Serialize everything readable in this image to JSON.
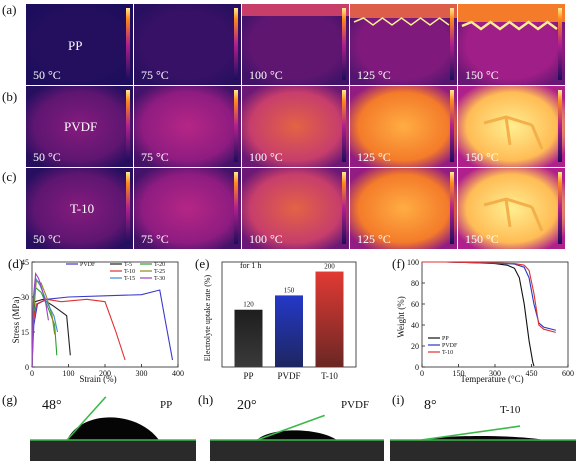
{
  "panels": {
    "a": "(a)",
    "b": "(b)",
    "c": "(c)",
    "d": "(d)",
    "e": "(e)",
    "f": "(f)",
    "g": "(g)",
    "h": "(h)",
    "i": "(i)"
  },
  "thermal": {
    "rows": [
      {
        "label": "PP",
        "id": "pp",
        "intensity": [
          0.02,
          0.08,
          0.2,
          0.3,
          0.4
        ]
      },
      {
        "label": "PVDF",
        "id": "pvdf",
        "intensity": [
          0.2,
          0.35,
          0.55,
          0.75,
          0.9
        ]
      },
      {
        "label": "T-10",
        "id": "t10",
        "intensity": [
          0.2,
          0.35,
          0.55,
          0.75,
          0.9
        ]
      }
    ],
    "temps": [
      "50 °C",
      "75 °C",
      "100 °C",
      "125 °C",
      "150 °C"
    ]
  },
  "colors": {
    "thermal_low": "#1c0e5c",
    "thermal_mid": "#b0208c",
    "thermal_high": "#ff8a1a",
    "thermal_top": "#ffee90",
    "pp_bar": "#1e1e1e",
    "pvdf_bar": "#2438c8",
    "t10_bar": "#e23a34",
    "contact_line": "#3cb84a",
    "drop": "#050505"
  },
  "chart_data": [
    {
      "type": "line",
      "panel": "d",
      "xlabel": "Strain (%)",
      "ylabel": "Stress (MPa)",
      "xlim": [
        0,
        400
      ],
      "ylim": [
        0,
        45
      ],
      "xticks": [
        0,
        100,
        200,
        300,
        400
      ],
      "yticks": [
        0,
        15,
        30,
        45
      ],
      "legend": [
        {
          "name": "PVDF",
          "color": "#3a3acc"
        },
        {
          "name": "T-5",
          "color": "#222222"
        },
        {
          "name": "T-20",
          "color": "#2ca02c"
        },
        {
          "name": "T-10",
          "color": "#e03030"
        },
        {
          "name": "T-25",
          "color": "#8c8c1c"
        },
        {
          "name": "T-15",
          "color": "#3a8ad8"
        },
        {
          "name": "T-30",
          "color": "#a040c0"
        }
      ],
      "series": [
        {
          "name": "PVDF",
          "color": "#3a3acc",
          "x": [
            0,
            5,
            15,
            40,
            100,
            200,
            300,
            350,
            365,
            385
          ],
          "y": [
            0,
            18,
            27,
            29,
            30,
            30.5,
            31,
            33,
            20,
            3
          ]
        },
        {
          "name": "T-5",
          "color": "#222222",
          "x": [
            0,
            3,
            8,
            30,
            60,
            95,
            105
          ],
          "y": [
            0,
            20,
            28,
            29,
            26,
            22,
            5
          ]
        },
        {
          "name": "T-20",
          "color": "#2ca02c",
          "x": [
            0,
            4,
            10,
            25,
            45,
            62,
            68
          ],
          "y": [
            0,
            22,
            34,
            32,
            25,
            18,
            5
          ]
        },
        {
          "name": "T-10",
          "color": "#e03030",
          "x": [
            0,
            4,
            12,
            40,
            80,
            150,
            200,
            230,
            255
          ],
          "y": [
            0,
            20,
            27,
            29,
            28,
            29,
            28,
            15,
            3
          ]
        },
        {
          "name": "T-25",
          "color": "#8c8c1c",
          "x": [
            0,
            4,
            12,
            25,
            40,
            55,
            62
          ],
          "y": [
            0,
            25,
            37,
            36,
            30,
            22,
            14
          ]
        },
        {
          "name": "T-15",
          "color": "#3a8ad8",
          "x": [
            0,
            4,
            10,
            22,
            40,
            60,
            70
          ],
          "y": [
            0,
            28,
            38,
            35,
            28,
            22,
            15
          ]
        },
        {
          "name": "T-30",
          "color": "#a040c0",
          "x": [
            0,
            4,
            10,
            18,
            28,
            38,
            45
          ],
          "y": [
            0,
            30,
            40,
            38,
            33,
            27,
            20
          ]
        }
      ]
    },
    {
      "type": "bar",
      "panel": "e",
      "annotation": "for 1 h",
      "ylabel": "Electrolyte uptake rate (%)",
      "categories": [
        "PP",
        "PVDF",
        "T-10"
      ],
      "values": [
        120,
        150,
        200
      ],
      "value_labels": [
        "120",
        "150",
        "200"
      ],
      "ylim": [
        0,
        220
      ]
    },
    {
      "type": "line",
      "panel": "f",
      "xlabel": "Temperature (°C)",
      "ylabel": "Weight (%)",
      "xlim": [
        0,
        600
      ],
      "ylim": [
        0,
        100
      ],
      "xticks": [
        0,
        150,
        300,
        450,
        600
      ],
      "yticks": [
        0,
        20,
        40,
        60,
        80,
        100
      ],
      "legend": [
        {
          "name": "PP",
          "color": "#111111"
        },
        {
          "name": "PVDF",
          "color": "#2438c8"
        },
        {
          "name": "T-10",
          "color": "#e03030"
        }
      ],
      "series": [
        {
          "name": "PP",
          "color": "#111111",
          "x": [
            0,
            100,
            200,
            300,
            350,
            380,
            400,
            420,
            440,
            455,
            460
          ],
          "y": [
            100,
            100,
            99.5,
            98.5,
            97,
            94,
            85,
            60,
            25,
            5,
            1
          ]
        },
        {
          "name": "PVDF",
          "color": "#2438c8",
          "x": [
            0,
            100,
            200,
            300,
            380,
            420,
            440,
            460,
            480,
            500,
            550
          ],
          "y": [
            100,
            100,
            99.5,
            99,
            98,
            95,
            85,
            60,
            42,
            38,
            35
          ]
        },
        {
          "name": "T-10",
          "color": "#e03030",
          "x": [
            0,
            100,
            200,
            300,
            380,
            420,
            440,
            460,
            480,
            500,
            550
          ],
          "y": [
            100,
            100,
            99.5,
            99,
            98.5,
            97,
            92,
            70,
            40,
            36,
            33
          ]
        }
      ]
    }
  ],
  "contact": [
    {
      "panel": "g",
      "angle": "48°",
      "name": "PP",
      "angle_deg": 48
    },
    {
      "panel": "h",
      "angle": "20°",
      "name": "PVDF",
      "angle_deg": 20
    },
    {
      "panel": "i",
      "angle": "8°",
      "name": "T-10",
      "angle_deg": 8
    }
  ]
}
